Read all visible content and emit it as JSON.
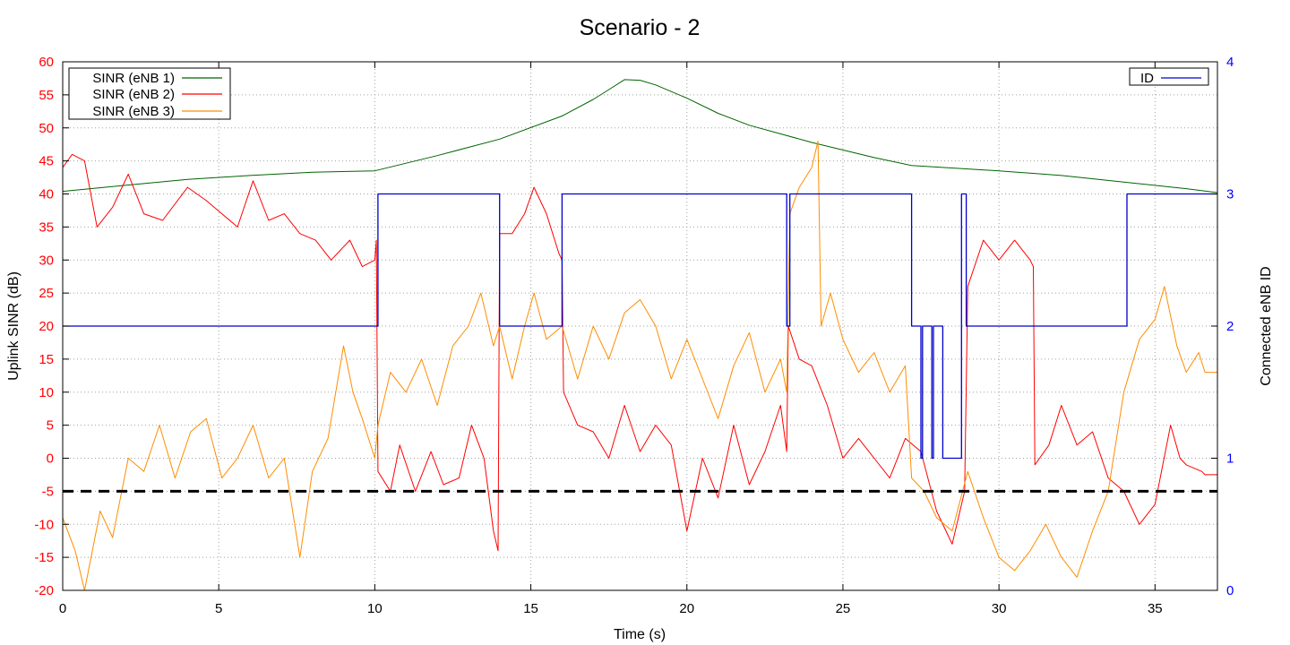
{
  "chart_data": {
    "type": "line",
    "title": "Scenario - 2",
    "xlabel": "Time (s)",
    "ylabel": "Uplink SINR (dB)",
    "y2label": "Connected eNB ID",
    "xlim": [
      0,
      37
    ],
    "ylim": [
      -20,
      60
    ],
    "y2lim": [
      0,
      4
    ],
    "xticks": [
      0,
      5,
      10,
      15,
      20,
      25,
      30,
      35
    ],
    "yticks": [
      -20,
      -15,
      -10,
      -5,
      0,
      5,
      10,
      15,
      20,
      25,
      30,
      35,
      40,
      45,
      50,
      55,
      60
    ],
    "y2ticks": [
      0,
      1,
      2,
      3,
      4
    ],
    "grid": true,
    "colors": {
      "left_axis": "#ff0000",
      "right_axis": "#0000ff",
      "grid": "#a0a0a0",
      "threshold": "#000000"
    },
    "threshold": {
      "y": -5,
      "style": "dashed"
    },
    "legend_left": {
      "placement": "top-left"
    },
    "legend_right": {
      "placement": "top-right"
    },
    "series": [
      {
        "name": "SINR (eNB 1)",
        "color": "#006400",
        "axis": "y",
        "points": [
          [
            0,
            40.4
          ],
          [
            2,
            41.3
          ],
          [
            4,
            42.2
          ],
          [
            6,
            42.8
          ],
          [
            8,
            43.3
          ],
          [
            10,
            43.5
          ],
          [
            12,
            45.8
          ],
          [
            14,
            48.3
          ],
          [
            16,
            51.8
          ],
          [
            17,
            54.3
          ],
          [
            17.5,
            55.8
          ],
          [
            18,
            57.3
          ],
          [
            18.5,
            57.2
          ],
          [
            19,
            56.5
          ],
          [
            20,
            54.5
          ],
          [
            21,
            52.2
          ],
          [
            22,
            50.4
          ],
          [
            24,
            47.8
          ],
          [
            26,
            45.5
          ],
          [
            27.2,
            44.3
          ],
          [
            30,
            43.5
          ],
          [
            32,
            42.8
          ],
          [
            34,
            41.8
          ],
          [
            36,
            40.8
          ],
          [
            37,
            40.2
          ]
        ]
      },
      {
        "name": "SINR (eNB 2)",
        "color": "#ff0000",
        "axis": "y",
        "points": [
          [
            0,
            44
          ],
          [
            0.3,
            46
          ],
          [
            0.7,
            45
          ],
          [
            1.1,
            35
          ],
          [
            1.6,
            38
          ],
          [
            2.1,
            43
          ],
          [
            2.6,
            37
          ],
          [
            3.2,
            36
          ],
          [
            4,
            41
          ],
          [
            4.6,
            39
          ],
          [
            5.1,
            37
          ],
          [
            5.6,
            35
          ],
          [
            6.1,
            42
          ],
          [
            6.6,
            36
          ],
          [
            7.1,
            37
          ],
          [
            7.6,
            34
          ],
          [
            8.1,
            33
          ],
          [
            8.6,
            30
          ],
          [
            9.2,
            33
          ],
          [
            9.6,
            29
          ],
          [
            10,
            30
          ],
          [
            10.05,
            33
          ],
          [
            10.1,
            -2
          ],
          [
            10.5,
            -5
          ],
          [
            10.8,
            2
          ],
          [
            11.3,
            -5
          ],
          [
            11.8,
            1
          ],
          [
            12.2,
            -4
          ],
          [
            12.7,
            -3
          ],
          [
            13.1,
            5
          ],
          [
            13.5,
            0
          ],
          [
            13.8,
            -11
          ],
          [
            13.95,
            -14
          ],
          [
            14,
            34
          ],
          [
            14.4,
            34
          ],
          [
            14.8,
            37
          ],
          [
            15.1,
            41
          ],
          [
            15.5,
            37
          ],
          [
            15.9,
            31
          ],
          [
            16,
            30
          ],
          [
            16.05,
            10
          ],
          [
            16.5,
            5
          ],
          [
            17,
            4
          ],
          [
            17.5,
            0
          ],
          [
            18,
            8
          ],
          [
            18.5,
            1
          ],
          [
            19,
            5
          ],
          [
            19.5,
            2
          ],
          [
            20,
            -11
          ],
          [
            20.5,
            0
          ],
          [
            21,
            -6
          ],
          [
            21.5,
            5
          ],
          [
            22,
            -4
          ],
          [
            22.5,
            1
          ],
          [
            23,
            8
          ],
          [
            23.2,
            1
          ],
          [
            23.25,
            20
          ],
          [
            23.6,
            15
          ],
          [
            24,
            14
          ],
          [
            24.5,
            8
          ],
          [
            25,
            0
          ],
          [
            25.5,
            3
          ],
          [
            26,
            0
          ],
          [
            26.5,
            -3
          ],
          [
            27,
            3
          ],
          [
            27.5,
            1
          ],
          [
            28,
            -8
          ],
          [
            28.5,
            -13
          ],
          [
            28.9,
            -5
          ],
          [
            29,
            26
          ],
          [
            29.5,
            33
          ],
          [
            30,
            30
          ],
          [
            30.5,
            33
          ],
          [
            31,
            30
          ],
          [
            31.1,
            29
          ],
          [
            31.15,
            -1
          ],
          [
            31.6,
            2
          ],
          [
            32,
            8
          ],
          [
            32.5,
            2
          ],
          [
            33,
            4
          ],
          [
            33.5,
            -3
          ],
          [
            34,
            -5
          ],
          [
            34.5,
            -10
          ],
          [
            35,
            -7
          ],
          [
            35.5,
            5
          ],
          [
            35.8,
            0
          ],
          [
            36,
            -1
          ],
          [
            36.5,
            -2
          ],
          [
            36.6,
            -2.5
          ],
          [
            37,
            -2.5
          ]
        ]
      },
      {
        "name": "SINR (eNB 3)",
        "color": "#ff8c00",
        "axis": "y",
        "points": [
          [
            0,
            -9
          ],
          [
            0.4,
            -14
          ],
          [
            0.7,
            -20
          ],
          [
            1.2,
            -8
          ],
          [
            1.6,
            -12
          ],
          [
            2.1,
            0
          ],
          [
            2.6,
            -2
          ],
          [
            3.1,
            5
          ],
          [
            3.6,
            -3
          ],
          [
            4.1,
            4
          ],
          [
            4.6,
            6
          ],
          [
            5.1,
            -3
          ],
          [
            5.6,
            0
          ],
          [
            6.1,
            5
          ],
          [
            6.6,
            -3
          ],
          [
            7.1,
            0
          ],
          [
            7.6,
            -15
          ],
          [
            8,
            -2
          ],
          [
            8.5,
            3
          ],
          [
            9,
            17
          ],
          [
            9.3,
            10
          ],
          [
            9.6,
            6
          ],
          [
            10,
            0
          ],
          [
            10.1,
            5
          ],
          [
            10.5,
            13
          ],
          [
            11,
            10
          ],
          [
            11.5,
            15
          ],
          [
            12,
            8
          ],
          [
            12.5,
            17
          ],
          [
            13,
            20
          ],
          [
            13.4,
            25
          ],
          [
            13.8,
            17
          ],
          [
            14,
            20
          ],
          [
            14.4,
            12
          ],
          [
            14.8,
            20
          ],
          [
            15.1,
            25
          ],
          [
            15.5,
            18
          ],
          [
            16,
            20
          ],
          [
            16.5,
            12
          ],
          [
            17,
            20
          ],
          [
            17.5,
            15
          ],
          [
            18,
            22
          ],
          [
            18.5,
            24
          ],
          [
            19,
            20
          ],
          [
            19.5,
            12
          ],
          [
            20,
            18
          ],
          [
            20.5,
            12
          ],
          [
            21,
            6
          ],
          [
            21.5,
            14
          ],
          [
            22,
            19
          ],
          [
            22.5,
            10
          ],
          [
            23,
            15
          ],
          [
            23.2,
            10
          ],
          [
            23.3,
            37
          ],
          [
            23.6,
            41
          ],
          [
            24,
            44
          ],
          [
            24.2,
            48
          ],
          [
            24.3,
            20
          ],
          [
            24.6,
            25
          ],
          [
            25,
            18
          ],
          [
            25.5,
            13
          ],
          [
            26,
            16
          ],
          [
            26.5,
            10
          ],
          [
            27,
            14
          ],
          [
            27.2,
            -3
          ],
          [
            27.6,
            -5
          ],
          [
            28,
            -9
          ],
          [
            28.5,
            -11
          ],
          [
            29,
            -2
          ],
          [
            29.5,
            -9
          ],
          [
            30,
            -15
          ],
          [
            30.5,
            -17
          ],
          [
            31,
            -14
          ],
          [
            31.5,
            -10
          ],
          [
            32,
            -15
          ],
          [
            32.5,
            -18
          ],
          [
            33,
            -11
          ],
          [
            33.5,
            -5
          ],
          [
            34,
            10
          ],
          [
            34.5,
            18
          ],
          [
            35,
            21
          ],
          [
            35.3,
            26
          ],
          [
            35.7,
            17
          ],
          [
            36,
            13
          ],
          [
            36.4,
            16
          ],
          [
            36.6,
            13
          ],
          [
            37,
            13
          ]
        ]
      },
      {
        "name": "ID",
        "color": "#0000cc",
        "axis": "y2",
        "step": true,
        "points": [
          [
            0,
            2
          ],
          [
            10.1,
            2
          ],
          [
            10.1,
            3
          ],
          [
            14,
            3
          ],
          [
            14,
            2
          ],
          [
            16,
            2
          ],
          [
            16,
            3
          ],
          [
            23.2,
            3
          ],
          [
            23.2,
            2
          ],
          [
            23.3,
            2
          ],
          [
            23.3,
            3
          ],
          [
            27.2,
            3
          ],
          [
            27.2,
            2
          ],
          [
            27.5,
            2
          ],
          [
            27.5,
            1
          ],
          [
            27.55,
            1
          ],
          [
            27.55,
            2
          ],
          [
            27.85,
            2
          ],
          [
            27.85,
            1
          ],
          [
            27.9,
            1
          ],
          [
            27.9,
            2
          ],
          [
            28.2,
            2
          ],
          [
            28.2,
            1
          ],
          [
            28.8,
            1
          ],
          [
            28.8,
            3
          ],
          [
            28.95,
            3
          ],
          [
            28.95,
            2
          ],
          [
            34.1,
            2
          ],
          [
            34.1,
            3
          ],
          [
            37,
            3
          ]
        ]
      }
    ]
  }
}
